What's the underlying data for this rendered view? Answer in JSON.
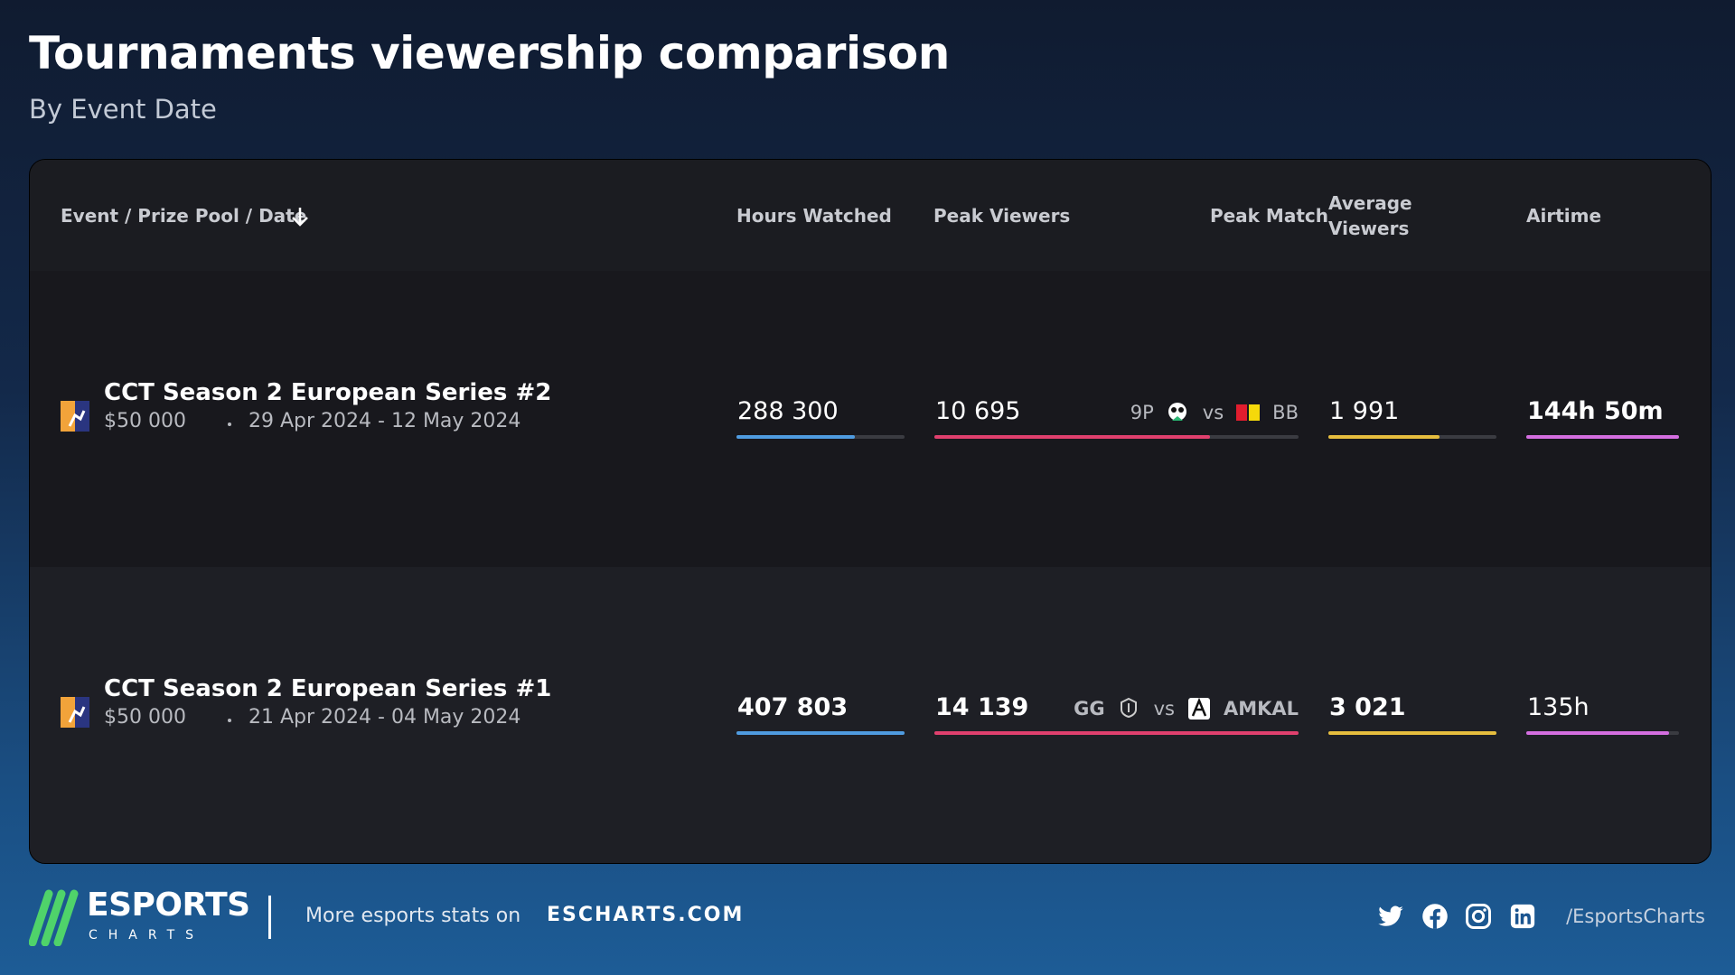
{
  "header": {
    "title": "Tournaments viewership comparison",
    "subtitle": "By Event Date"
  },
  "table": {
    "columns": [
      "Event / Prize Pool / Date",
      "Hours Watched",
      "Peak Viewers",
      "Peak Match",
      "Average Viewers",
      "Airtime"
    ],
    "rows": [
      {
        "event": "CCT Season 2 European Series #2",
        "prize_pool": "$50 000",
        "date": "29 Apr 2024 - 12 May 2024",
        "hours_watched": "288 300",
        "peak_viewers": "10 695",
        "peak_match": {
          "team1": "9P",
          "vs": "vs",
          "team2": "BB"
        },
        "average_viewers": "1 991",
        "airtime": "144h 50m"
      },
      {
        "event": "CCT Season 2 European Series #1",
        "prize_pool": "$50 000",
        "date": "21 Apr 2024 - 04 May 2024",
        "hours_watched": "407 803",
        "peak_viewers": "14 139",
        "peak_match": {
          "team1": "GG",
          "vs": "vs",
          "team2": "AMKAL"
        },
        "average_viewers": "3 021",
        "airtime": "135h"
      }
    ]
  },
  "footer": {
    "logo": "ESPORTS",
    "logo_sub": "CHARTS",
    "promo": "More esports stats on",
    "site": "ESCHARTS.COM",
    "handle": "/EsportsCharts"
  }
}
